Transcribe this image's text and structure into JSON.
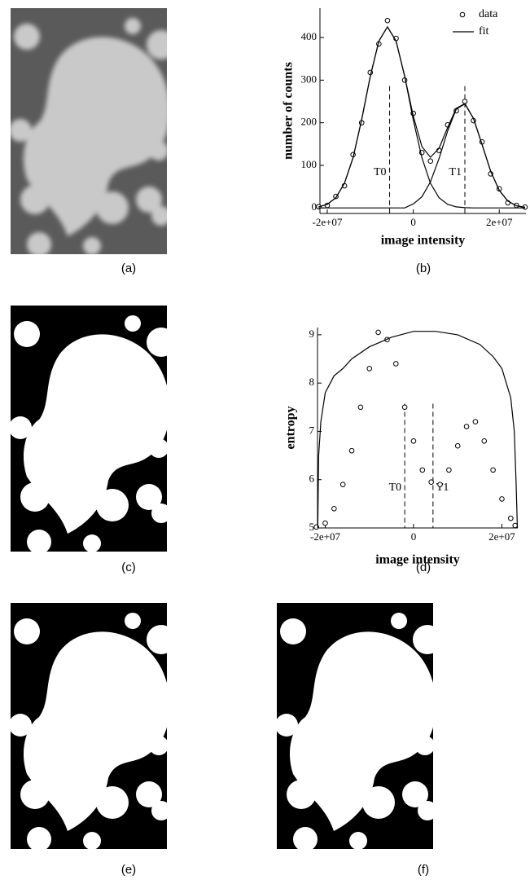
{
  "captions": [
    "(a)",
    "(b)",
    "(c)",
    "(d)",
    "(e)",
    "(f)"
  ],
  "chart_data": [
    {
      "type": "line",
      "xlabel": "image intensity",
      "ylabel": "number of counts",
      "x": [
        -22000000.0,
        -20000000.0,
        -18000000.0,
        -16000000.0,
        -14000000.0,
        -12000000.0,
        -10000000.0,
        -8000000.0,
        -6000000.0,
        -4000000.0,
        -2000000.0,
        0,
        2000000.0,
        4000000.0,
        6000000.0,
        8000000.0,
        10000000.0,
        12000000.0,
        14000000.0,
        16000000.0,
        18000000.0,
        20000000.0,
        22000000.0,
        24000000.0,
        26000000.0
      ],
      "xlim": [
        -21700000.0,
        26200000.0
      ],
      "xticks": [
        {
          "value": -20000000.0,
          "label": "-2e+07"
        },
        0,
        {
          "value": 20000000.0,
          "label": "2e+07"
        }
      ],
      "ylim": [
        -13,
        469
      ],
      "yticks": [
        0,
        100,
        200,
        300,
        400
      ],
      "legend": "upper right",
      "series": [
        {
          "name": "data",
          "marker": "circle",
          "color": "#000000",
          "values": [
            3,
            6,
            27,
            52,
            125,
            200,
            318,
            385,
            440,
            398,
            300,
            222,
            130,
            110,
            135,
            195,
            228,
            250,
            205,
            155,
            80,
            45,
            12,
            6,
            2
          ]
        },
        {
          "name": "fit",
          "color": "#000000",
          "values": [
            2.5,
            8.4,
            24,
            58,
            118,
            207,
            309,
            392,
            425,
            392,
            309,
            216,
            144,
            119,
            140,
            189,
            234,
            245,
            210,
            149,
            86,
            41,
            16,
            5,
            1.4
          ]
        },
        {
          "color": "#000000",
          "values": [
            2.5,
            8.4,
            24,
            58,
            118,
            207,
            309,
            392,
            425,
            392,
            309,
            207,
            118,
            58,
            24,
            8.4,
            2.5,
            0.6,
            0.1,
            0,
            0,
            0,
            0,
            0,
            0
          ]
        },
        {
          "color": "#000000",
          "values": [
            0,
            0,
            0,
            0,
            0,
            0,
            0,
            0,
            0,
            0,
            0,
            9.3,
            26,
            61,
            116,
            181,
            232,
            244,
            210,
            149,
            86,
            41,
            16,
            5,
            1.4
          ]
        }
      ],
      "thresholds": [
        {
          "label": "T0",
          "x": -5500000.0
        },
        {
          "label": "T1",
          "x": 12000000.0
        }
      ]
    },
    {
      "type": "line",
      "xlabel": "image intensity",
      "ylabel": "entropy",
      "xlim": [
        -21750000.0,
        23600000.0
      ],
      "xticks": [
        {
          "value": -20000000.0,
          "label": "-2e+07"
        },
        0,
        {
          "value": 20000000.0,
          "label": "2e+07"
        }
      ],
      "ylim": [
        5,
        9.15
      ],
      "yticks": [
        5,
        6,
        7,
        8,
        9
      ],
      "series": [
        {
          "marker": "circle",
          "color": "#000000",
          "x": [
            -22000000.0,
            -20000000.0,
            -18000000.0,
            -16000000.0,
            -14000000.0,
            -12000000.0,
            -10000000.0,
            -8000000.0,
            -6000000.0,
            -4000000.0,
            -2000000.0,
            0,
            2000000.0,
            4000000.0,
            6000000.0,
            8000000.0,
            10000000.0,
            12000000.0,
            14000000.0,
            16000000.0,
            18000000.0,
            20000000.0,
            22000000.0,
            23000000.0
          ],
          "values": [
            5.02,
            5.1,
            5.4,
            5.9,
            6.6,
            7.5,
            8.3,
            9.05,
            8.9,
            8.4,
            7.5,
            6.8,
            6.2,
            5.95,
            5.9,
            6.2,
            6.7,
            7.1,
            7.2,
            6.8,
            6.2,
            5.6,
            5.2,
            5.05
          ]
        },
        {
          "color": "#000000",
          "x": [
            -21700000.0,
            -21500000.0,
            -21000000.0,
            -20000000.0,
            -18000000.0,
            -16000000.0,
            -14000000.0,
            -10000000.0,
            -5000000.0,
            0,
            5000000.0,
            10000000.0,
            15000000.0,
            18000000.0,
            20000000.0,
            22000000.0,
            22800000.0,
            23200000.0,
            23500000.0
          ],
          "values": [
            5.0,
            6.5,
            7.2,
            7.8,
            8.15,
            8.3,
            8.5,
            8.75,
            8.95,
            9.07,
            9.07,
            9.0,
            8.8,
            8.55,
            8.3,
            7.7,
            7.0,
            6.0,
            5.0
          ]
        }
      ],
      "thresholds": [
        {
          "label": "T0",
          "x": -2000000.0
        },
        {
          "label": "T1",
          "x": 4400000.0
        }
      ]
    }
  ]
}
